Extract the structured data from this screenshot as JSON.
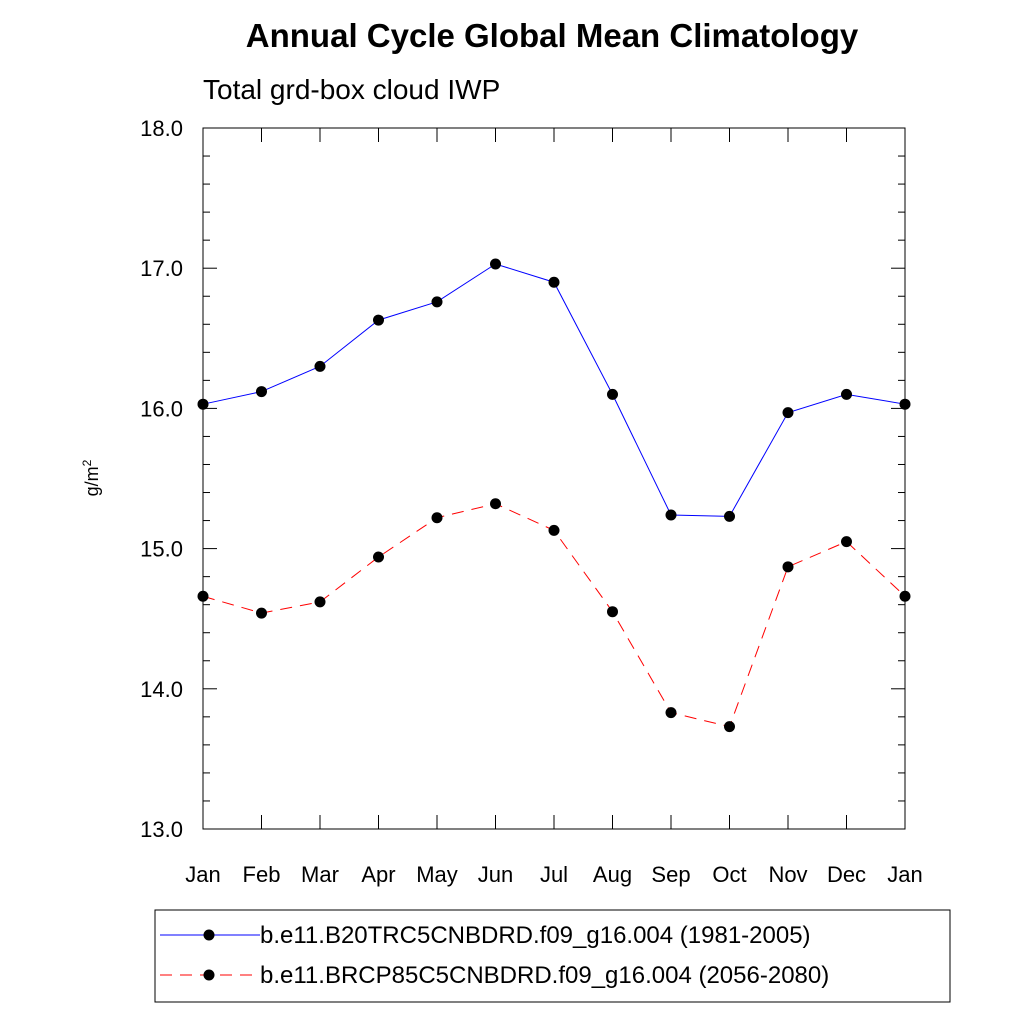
{
  "chart_data": {
    "type": "line",
    "title": "Annual Cycle Global Mean Climatology",
    "subtitle": "Total grd-box cloud IWP",
    "ylabel_base": "g/m",
    "ylabel_sup": "2",
    "ylim": [
      13.0,
      18.0
    ],
    "yticks": [
      "13.0",
      "14.0",
      "15.0",
      "16.0",
      "17.0",
      "18.0"
    ],
    "categories": [
      "Jan",
      "Feb",
      "Mar",
      "Apr",
      "May",
      "Jun",
      "Jul",
      "Aug",
      "Sep",
      "Oct",
      "Nov",
      "Dec",
      "Jan"
    ],
    "grid": false,
    "legend_position": "bottom",
    "series": [
      {
        "name": "b.e11.B20TRC5CNBDRD.f09_g16.004 (1981-2005)",
        "color": "#0000ff",
        "dash": "solid",
        "marker": "filled-circle",
        "values": [
          16.03,
          16.12,
          16.3,
          16.63,
          16.76,
          17.03,
          16.9,
          16.1,
          15.24,
          15.23,
          15.97,
          16.1,
          16.03
        ]
      },
      {
        "name": "b.e11.BRCP85C5CNBDRD.f09_g16.004 (2056-2080)",
        "color": "#ff0000",
        "dash": "dashed",
        "marker": "filled-circle",
        "values": [
          14.66,
          14.54,
          14.62,
          14.94,
          15.22,
          15.32,
          15.13,
          14.55,
          13.83,
          13.73,
          14.87,
          15.05,
          14.66
        ]
      }
    ]
  }
}
